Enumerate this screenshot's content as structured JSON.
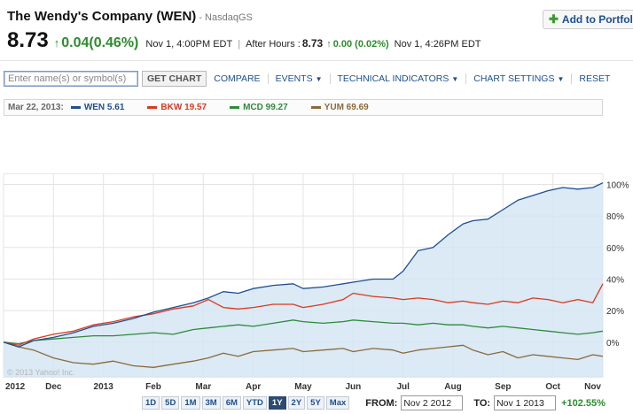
{
  "header": {
    "company": "The Wendy's Company (WEN)",
    "exchange": "- NasdaqGS",
    "add_portfolio": "Add to Portfolio",
    "price": "8.73",
    "change": "0.04(0.46%)",
    "time": "Nov 1, 4:00PM EDT",
    "after_hours_label": "After Hours :",
    "after_hours_price": "8.73",
    "after_hours_change": "0.00 (0.02%)",
    "after_hours_time": "Nov 1, 4:26PM EDT"
  },
  "toolbar": {
    "search_placeholder": "Enter name(s) or symbol(s)",
    "get_chart": "GET CHART",
    "compare": "COMPARE",
    "events": "EVENTS",
    "technical_indicators": "TECHNICAL INDICATORS",
    "chart_settings": "CHART SETTINGS",
    "reset": "RESET"
  },
  "legend": {
    "date": "Mar 22, 2013:",
    "items": [
      {
        "label": "WEN 5.61",
        "color": "#1f4f8f"
      },
      {
        "label": "BKW 19.57",
        "color": "#d93a1f"
      },
      {
        "label": "MCD 99.27",
        "color": "#2e8b3a"
      },
      {
        "label": "YUM 69.69",
        "color": "#8b6a3a"
      }
    ]
  },
  "range_buttons": [
    "1D",
    "5D",
    "1M",
    "3M",
    "6M",
    "YTD",
    "1Y",
    "2Y",
    "5Y",
    "Max"
  ],
  "range_active": "1Y",
  "from_label": "FROM:",
  "from_value": "Nov 2 2012",
  "to_label": "TO:",
  "to_value": "Nov 1 2013",
  "period_change": "+102.55%",
  "copyright": "© 2013 Yahoo! Inc.",
  "chart_data": {
    "type": "line",
    "x_ticks": [
      "2012",
      "Dec",
      "2013",
      "Feb",
      "Mar",
      "Apr",
      "May",
      "Jun",
      "Jul",
      "Aug",
      "Sep",
      "Oct",
      "Nov"
    ],
    "y_ticks": [
      "100%",
      "80%",
      "60%",
      "40%",
      "20%",
      "0%"
    ],
    "ylim": [
      -22,
      107
    ],
    "grid": true,
    "series": [
      {
        "name": "WEN",
        "color": "#1f4f8f",
        "fill": "#d5e6f3",
        "points": [
          [
            0,
            0
          ],
          [
            0.3,
            -3
          ],
          [
            0.6,
            1
          ],
          [
            1,
            3
          ],
          [
            1.4,
            6
          ],
          [
            1.8,
            10
          ],
          [
            2.2,
            12
          ],
          [
            2.6,
            15
          ],
          [
            3.0,
            19
          ],
          [
            3.4,
            22
          ],
          [
            3.8,
            25
          ],
          [
            4.1,
            28
          ],
          [
            4.4,
            32
          ],
          [
            4.7,
            31
          ],
          [
            5.0,
            34
          ],
          [
            5.4,
            36
          ],
          [
            5.8,
            37
          ],
          [
            6.0,
            34
          ],
          [
            6.4,
            35
          ],
          [
            6.8,
            37
          ],
          [
            7.0,
            38
          ],
          [
            7.4,
            40
          ],
          [
            7.8,
            40
          ],
          [
            8.0,
            45
          ],
          [
            8.3,
            58
          ],
          [
            8.6,
            60
          ],
          [
            8.9,
            68
          ],
          [
            9.2,
            75
          ],
          [
            9.4,
            77
          ],
          [
            9.7,
            78
          ],
          [
            10.0,
            84
          ],
          [
            10.3,
            90
          ],
          [
            10.6,
            93
          ],
          [
            10.9,
            96
          ],
          [
            11.2,
            98
          ],
          [
            11.5,
            97
          ],
          [
            11.8,
            98
          ],
          [
            12.0,
            101
          ]
        ]
      },
      {
        "name": "BKW",
        "color": "#d93a1f",
        "points": [
          [
            0,
            0
          ],
          [
            0.3,
            -2
          ],
          [
            0.6,
            2
          ],
          [
            1,
            5
          ],
          [
            1.4,
            7
          ],
          [
            1.8,
            11
          ],
          [
            2.2,
            13
          ],
          [
            2.6,
            16
          ],
          [
            3.0,
            18
          ],
          [
            3.4,
            21
          ],
          [
            3.8,
            23
          ],
          [
            4.1,
            27
          ],
          [
            4.4,
            22
          ],
          [
            4.7,
            21
          ],
          [
            5.0,
            22
          ],
          [
            5.4,
            24
          ],
          [
            5.8,
            24
          ],
          [
            6.0,
            22
          ],
          [
            6.4,
            24
          ],
          [
            6.8,
            27
          ],
          [
            7.0,
            31
          ],
          [
            7.4,
            29
          ],
          [
            7.8,
            28
          ],
          [
            8.0,
            27
          ],
          [
            8.3,
            28
          ],
          [
            8.6,
            27
          ],
          [
            8.9,
            25
          ],
          [
            9.2,
            26
          ],
          [
            9.4,
            25
          ],
          [
            9.7,
            24
          ],
          [
            10.0,
            26
          ],
          [
            10.3,
            25
          ],
          [
            10.6,
            28
          ],
          [
            10.9,
            27
          ],
          [
            11.2,
            25
          ],
          [
            11.5,
            27
          ],
          [
            11.8,
            25
          ],
          [
            12.0,
            37
          ]
        ]
      },
      {
        "name": "MCD",
        "color": "#2e8b3a",
        "points": [
          [
            0,
            0
          ],
          [
            0.3,
            -1
          ],
          [
            0.6,
            1
          ],
          [
            1,
            2
          ],
          [
            1.4,
            3
          ],
          [
            1.8,
            4
          ],
          [
            2.2,
            4
          ],
          [
            2.6,
            5
          ],
          [
            3.0,
            6
          ],
          [
            3.4,
            5
          ],
          [
            3.8,
            8
          ],
          [
            4.1,
            9
          ],
          [
            4.4,
            10
          ],
          [
            4.7,
            11
          ],
          [
            5.0,
            10
          ],
          [
            5.4,
            12
          ],
          [
            5.8,
            14
          ],
          [
            6.0,
            13
          ],
          [
            6.4,
            12
          ],
          [
            6.8,
            13
          ],
          [
            7.0,
            14
          ],
          [
            7.4,
            13
          ],
          [
            7.8,
            12
          ],
          [
            8.0,
            12
          ],
          [
            8.3,
            11
          ],
          [
            8.6,
            12
          ],
          [
            8.9,
            11
          ],
          [
            9.2,
            11
          ],
          [
            9.4,
            10
          ],
          [
            9.7,
            9
          ],
          [
            10.0,
            10
          ],
          [
            10.3,
            9
          ],
          [
            10.6,
            8
          ],
          [
            10.9,
            7
          ],
          [
            11.2,
            6
          ],
          [
            11.5,
            5
          ],
          [
            11.8,
            6
          ],
          [
            12.0,
            7
          ]
        ]
      },
      {
        "name": "YUM",
        "color": "#8b6a3a",
        "points": [
          [
            0,
            0
          ],
          [
            0.3,
            -3
          ],
          [
            0.6,
            -5
          ],
          [
            1,
            -10
          ],
          [
            1.4,
            -13
          ],
          [
            1.8,
            -14
          ],
          [
            2.2,
            -12
          ],
          [
            2.6,
            -15
          ],
          [
            3.0,
            -16
          ],
          [
            3.4,
            -14
          ],
          [
            3.8,
            -12
          ],
          [
            4.1,
            -10
          ],
          [
            4.4,
            -7
          ],
          [
            4.7,
            -9
          ],
          [
            5.0,
            -6
          ],
          [
            5.4,
            -5
          ],
          [
            5.8,
            -4
          ],
          [
            6.0,
            -6
          ],
          [
            6.4,
            -5
          ],
          [
            6.8,
            -4
          ],
          [
            7.0,
            -6
          ],
          [
            7.4,
            -4
          ],
          [
            7.8,
            -5
          ],
          [
            8.0,
            -7
          ],
          [
            8.3,
            -5
          ],
          [
            8.6,
            -4
          ],
          [
            8.9,
            -3
          ],
          [
            9.2,
            -2
          ],
          [
            9.4,
            -5
          ],
          [
            9.7,
            -8
          ],
          [
            10.0,
            -6
          ],
          [
            10.3,
            -10
          ],
          [
            10.6,
            -8
          ],
          [
            10.9,
            -9
          ],
          [
            11.2,
            -10
          ],
          [
            11.5,
            -11
          ],
          [
            11.8,
            -8
          ],
          [
            12.0,
            -9
          ]
        ]
      }
    ]
  }
}
